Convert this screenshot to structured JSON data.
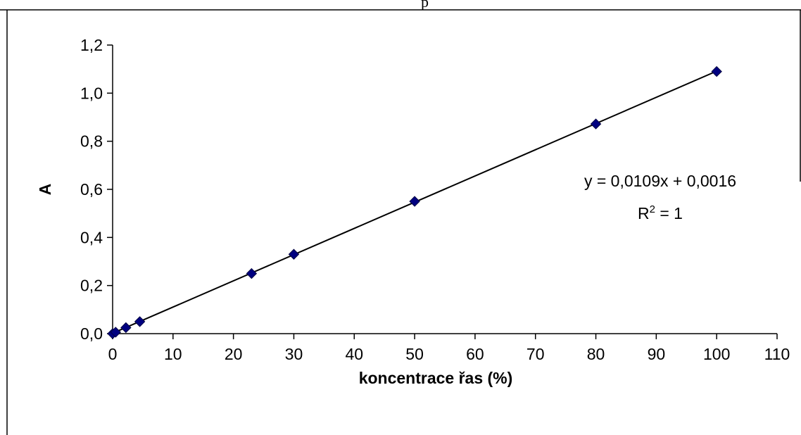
{
  "header_fragment": "p",
  "chart_data": {
    "type": "scatter",
    "xlabel": "koncentrace řas (%)",
    "ylabel": "A",
    "xlim": [
      0,
      110
    ],
    "ylim": [
      0,
      1.2
    ],
    "x_ticks": [
      "0",
      "10",
      "20",
      "30",
      "40",
      "50",
      "60",
      "70",
      "80",
      "90",
      "100",
      "110"
    ],
    "y_ticks": [
      "0,0",
      "0,2",
      "0,4",
      "0,6",
      "0,8",
      "1,0",
      "1,2"
    ],
    "series": [
      {
        "marker": "diamond",
        "color": "#000080",
        "points": [
          {
            "x": 0,
            "y": 0.0
          },
          {
            "x": 0.5,
            "y": 0.006
          },
          {
            "x": 2.2,
            "y": 0.025
          },
          {
            "x": 4.5,
            "y": 0.05
          },
          {
            "x": 23,
            "y": 0.25
          },
          {
            "x": 30,
            "y": 0.33
          },
          {
            "x": 50,
            "y": 0.55
          },
          {
            "x": 80,
            "y": 0.872
          },
          {
            "x": 100,
            "y": 1.09
          }
        ]
      }
    ],
    "trendline": {
      "slope": 0.0109,
      "intercept": 0.0016,
      "color": "#000000"
    },
    "annotation": {
      "equation": "y = 0,0109x + 0,0016",
      "r2_prefix": "R",
      "r2_superscript": "2",
      "r2_suffix": " = 1"
    },
    "grid": false,
    "legend": "none"
  }
}
